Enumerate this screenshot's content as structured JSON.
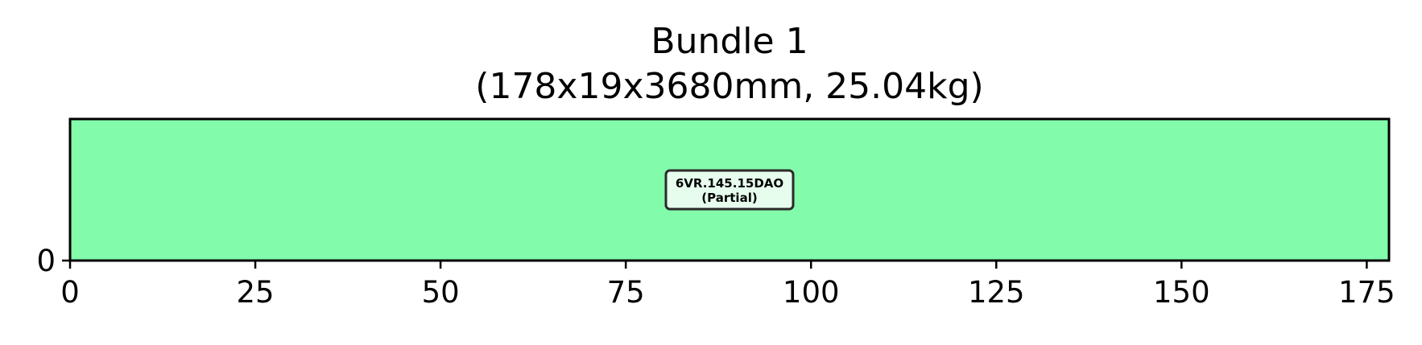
{
  "chart_data": {
    "type": "bar",
    "title_line1": "Bundle 1",
    "title_line2": "(178x19x3680mm, 25.04kg)",
    "xlabel": "",
    "ylabel": "",
    "xlim": [
      0,
      178
    ],
    "ylim": [
      0,
      19
    ],
    "x_ticks": [
      0,
      25,
      50,
      75,
      100,
      125,
      150,
      175
    ],
    "y_ticks": [
      0
    ],
    "grid": false,
    "bars": [
      {
        "x_start": 0,
        "x_end": 178,
        "y_start": 0,
        "y_end": 19,
        "color": "#82fbab",
        "label_line1": "6VR.145.15DAO",
        "label_line2": "(Partial)"
      }
    ]
  }
}
